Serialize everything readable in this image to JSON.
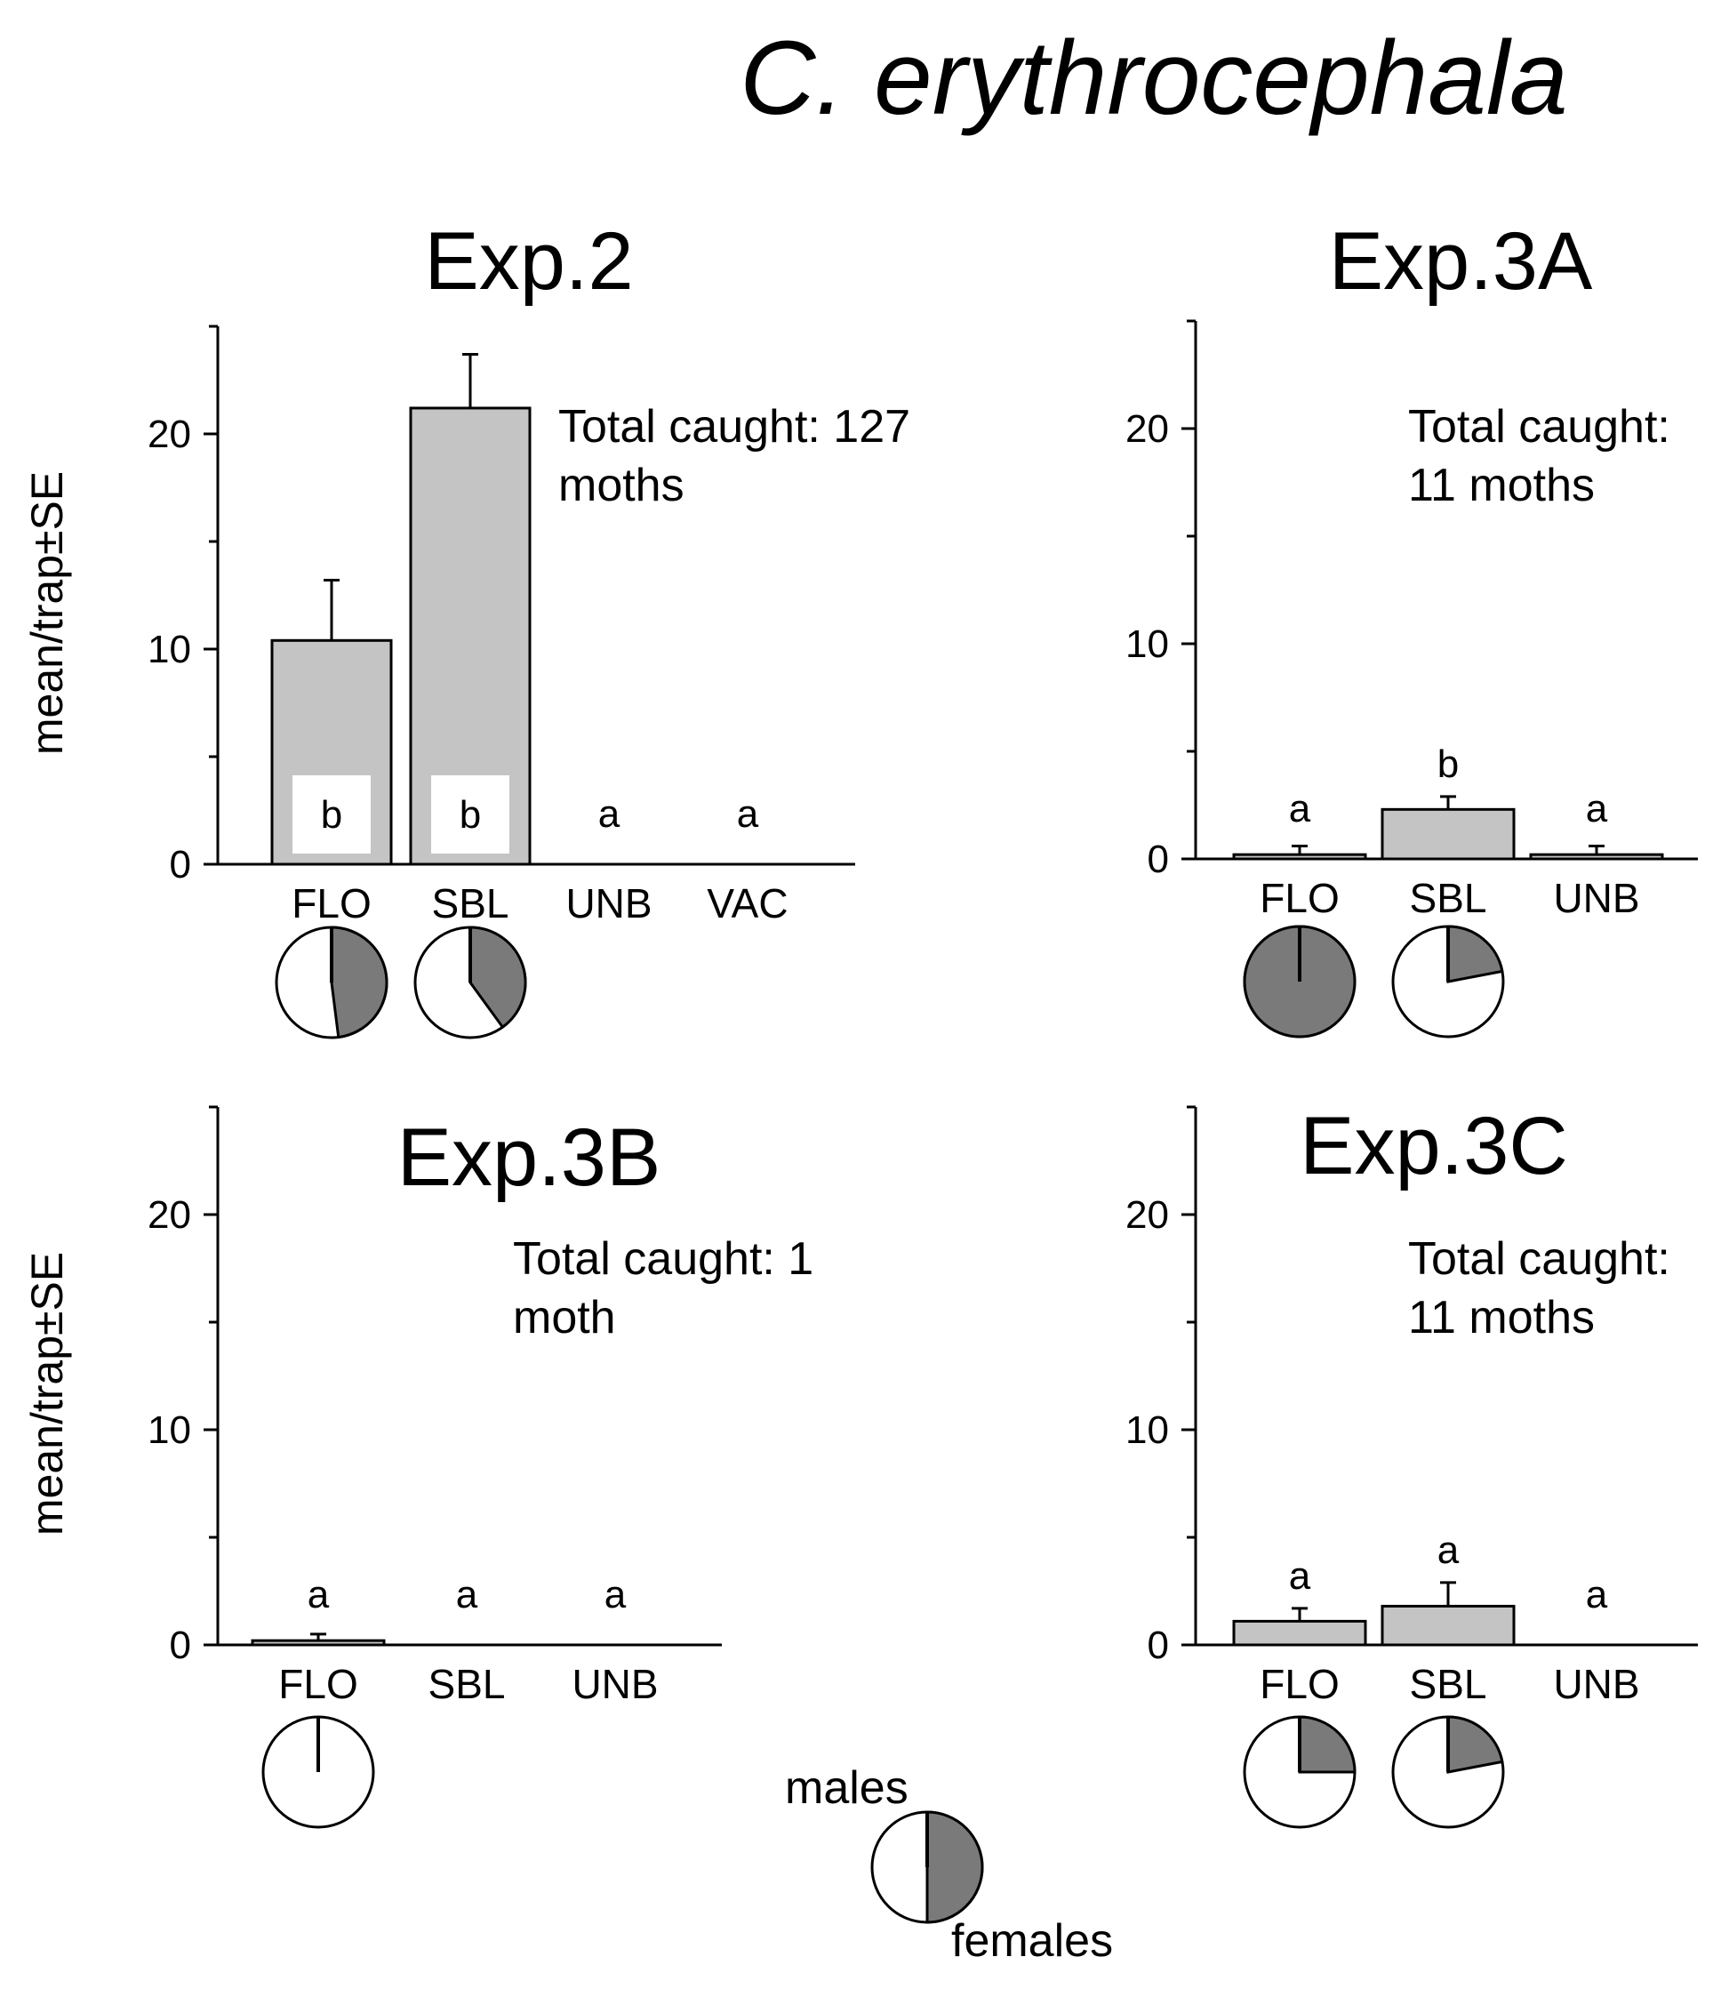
{
  "figure_title": "C. erythrocephala",
  "colors": {
    "bar": "#c4c4c4",
    "female": "#7a7a7a",
    "male": "#ffffff",
    "stroke": "#000000"
  },
  "legend": {
    "male_label": "males",
    "female_label": "females",
    "female_fraction": 0.5
  },
  "chart_data": [
    {
      "type": "bar",
      "title": "Exp.2",
      "ylabel": "mean/trap±SE",
      "ylim": [
        0,
        25
      ],
      "yticks": [
        "0",
        "10",
        "20"
      ],
      "categories": [
        "FLO",
        "SBL",
        "UNB",
        "VAC"
      ],
      "values": [
        10.4,
        21.2,
        0,
        0
      ],
      "errors": [
        2.8,
        2.5,
        0,
        0
      ],
      "letters": [
        "b",
        "b",
        "a",
        "a"
      ],
      "note_lines": [
        "Total caught: 127",
        "moths"
      ],
      "female_fractions": [
        0.48,
        0.4,
        null,
        null
      ]
    },
    {
      "type": "bar",
      "title": "Exp.3A",
      "ylabel": "",
      "ylim": [
        0,
        25
      ],
      "yticks": [
        "0",
        "10",
        "20"
      ],
      "categories": [
        "FLO",
        "SBL",
        "UNB"
      ],
      "values": [
        0.2,
        2.3,
        0.2
      ],
      "errors": [
        0.4,
        0.6,
        0.4
      ],
      "letters": [
        "a",
        "b",
        "a"
      ],
      "note_lines": [
        "Total caught:",
        "11 moths"
      ],
      "female_fractions": [
        1.0,
        0.22,
        null
      ]
    },
    {
      "type": "bar",
      "title": "Exp.3B",
      "ylabel": "mean/trap±SE",
      "ylim": [
        0,
        25
      ],
      "yticks": [
        "0",
        "10",
        "20"
      ],
      "categories": [
        "FLO",
        "SBL",
        "UNB"
      ],
      "values": [
        0.2,
        0,
        0
      ],
      "errors": [
        0.3,
        0,
        0
      ],
      "letters": [
        "a",
        "a",
        "a"
      ],
      "note_lines": [
        "Total caught: 1",
        "moth"
      ],
      "female_fractions": [
        0.0,
        null,
        null
      ]
    },
    {
      "type": "bar",
      "title": "Exp.3C",
      "ylabel": "",
      "ylim": [
        0,
        25
      ],
      "yticks": [
        "0",
        "10",
        "20"
      ],
      "categories": [
        "FLO",
        "SBL",
        "UNB"
      ],
      "values": [
        1.1,
        1.8,
        0
      ],
      "errors": [
        0.6,
        1.1,
        0
      ],
      "letters": [
        "a",
        "a",
        "a"
      ],
      "note_lines": [
        "Total caught:",
        "11 moths"
      ],
      "female_fractions": [
        0.25,
        0.22,
        null
      ]
    }
  ]
}
